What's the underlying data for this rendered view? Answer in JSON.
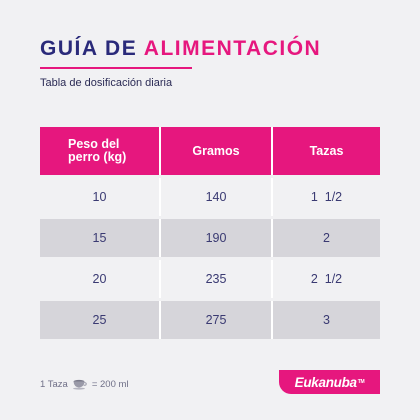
{
  "header": {
    "title_part1": "GUÍA DE",
    "title_part2": "ALIMENTACIÓN",
    "subtitle": "Tabla de dosificación diaria"
  },
  "table": {
    "columns": [
      "Peso del perro (kg)",
      "Gramos",
      "Tazas"
    ],
    "rows": [
      [
        "10",
        "140",
        "1  1/2"
      ],
      [
        "15",
        "190",
        "2"
      ],
      [
        "20",
        "235",
        "2  1/2"
      ],
      [
        "25",
        "275",
        "3"
      ]
    ]
  },
  "footer": {
    "cup_label": "1 Taza",
    "cup_icon": "coffee-cup-icon",
    "equals": "= 200 ml"
  },
  "brand": {
    "logo_text": "Eukanuba",
    "trademark": "TM",
    "accent_color": "#e6177e",
    "title_color": "#2a2a7a"
  }
}
